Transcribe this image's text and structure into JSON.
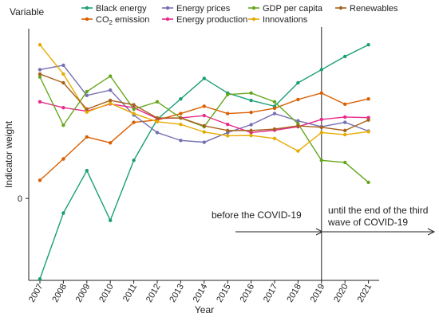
{
  "chart_data": {
    "type": "line",
    "legend": {
      "title": "Variable",
      "placement": "top",
      "co2_prefix": "CO",
      "co2_sub": "2",
      "co2_suffix": " emission"
    },
    "xlabel": "Year",
    "ylabel": "Indicator weight",
    "yticks": [
      0
    ],
    "ylim": [
      -0.28,
      0.58
    ],
    "x": [
      "2007",
      "2008",
      "2009",
      "2010",
      "2011",
      "2012",
      "2013",
      "2014",
      "2015",
      "2016",
      "2017",
      "2018",
      "2019",
      "2020",
      "2021"
    ],
    "divider_at": "2019",
    "annotations": {
      "before": "before the COVID-19",
      "after_line1": "until the end of the third",
      "after_line2": "wave of COVID-19"
    },
    "series": [
      {
        "name": "Black energy",
        "color": "#1b9e77",
        "values": [
          -0.275,
          -0.05,
          0.095,
          -0.075,
          0.13,
          0.27,
          0.34,
          0.41,
          0.36,
          0.335,
          0.315,
          0.395,
          0.44,
          0.485,
          0.525
        ]
      },
      {
        "name": "CO₂ emission",
        "color": "#d95f02",
        "values": [
          0.062,
          0.135,
          0.21,
          0.19,
          0.26,
          0.268,
          0.29,
          0.315,
          0.29,
          0.294,
          0.308,
          0.338,
          0.36,
          0.322,
          0.34
        ]
      },
      {
        "name": "Energy prices",
        "color": "#7570b3",
        "values": [
          0.44,
          0.455,
          0.352,
          0.37,
          0.285,
          0.225,
          0.198,
          0.192,
          0.225,
          0.252,
          0.29,
          0.265,
          0.245,
          0.26,
          0.23
        ]
      },
      {
        "name": "Energy production",
        "color": "#e7298a",
        "values": [
          0.33,
          0.31,
          0.298,
          0.323,
          0.31,
          0.273,
          0.275,
          0.283,
          0.253,
          0.225,
          0.233,
          0.245,
          0.27,
          0.278,
          0.276
        ]
      },
      {
        "name": "GDP per capita",
        "color": "#66a61e",
        "values": [
          0.415,
          0.25,
          0.365,
          0.418,
          0.305,
          0.33,
          0.275,
          0.245,
          0.355,
          0.36,
          0.33,
          0.255,
          0.13,
          0.123,
          0.055
        ]
      },
      {
        "name": "Innovations",
        "color": "#e6ab02",
        "values": [
          0.525,
          0.425,
          0.295,
          0.325,
          0.29,
          0.262,
          0.253,
          0.227,
          0.214,
          0.215,
          0.205,
          0.162,
          0.225,
          0.218,
          0.228
        ]
      },
      {
        "name": "Renewables",
        "color": "#a6611a",
        "values": [
          0.425,
          0.395,
          0.305,
          0.335,
          0.32,
          0.275,
          0.275,
          0.248,
          0.232,
          0.232,
          0.237,
          0.248,
          0.243,
          0.232,
          0.268
        ]
      }
    ]
  }
}
